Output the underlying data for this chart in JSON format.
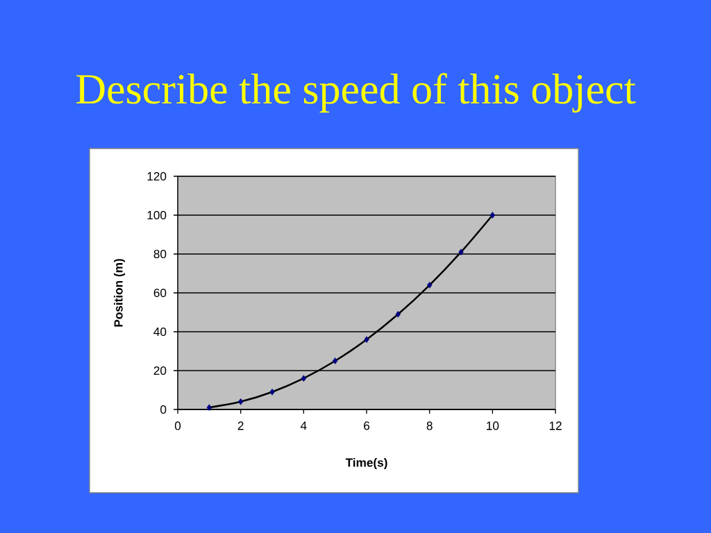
{
  "chart_data": {
    "type": "scatter",
    "title": "Describe the speed of this object",
    "xlabel": "Time(s)",
    "ylabel": "Position (m)",
    "x": [
      1,
      2,
      3,
      4,
      5,
      6,
      7,
      8,
      9,
      10
    ],
    "series": [
      {
        "type": "line",
        "color": "#000000",
        "marker": "none",
        "x": [
          1,
          2,
          3,
          4,
          5,
          6,
          7,
          8,
          9,
          10
        ],
        "values": [
          1,
          4,
          9,
          16,
          25,
          36,
          49,
          64,
          81,
          100
        ]
      },
      {
        "color": "#000080",
        "values": [
          1,
          4,
          9,
          16,
          25,
          36,
          49,
          64,
          81,
          100
        ]
      }
    ],
    "marker": "diamond",
    "line_style": "solid",
    "grid": "y",
    "xlim": [
      0,
      12
    ],
    "ylim": [
      0,
      120
    ],
    "xticks": [
      0,
      2,
      4,
      6,
      8,
      10,
      12
    ],
    "yticks": [
      0,
      20,
      40,
      60,
      80,
      100,
      120
    ]
  }
}
